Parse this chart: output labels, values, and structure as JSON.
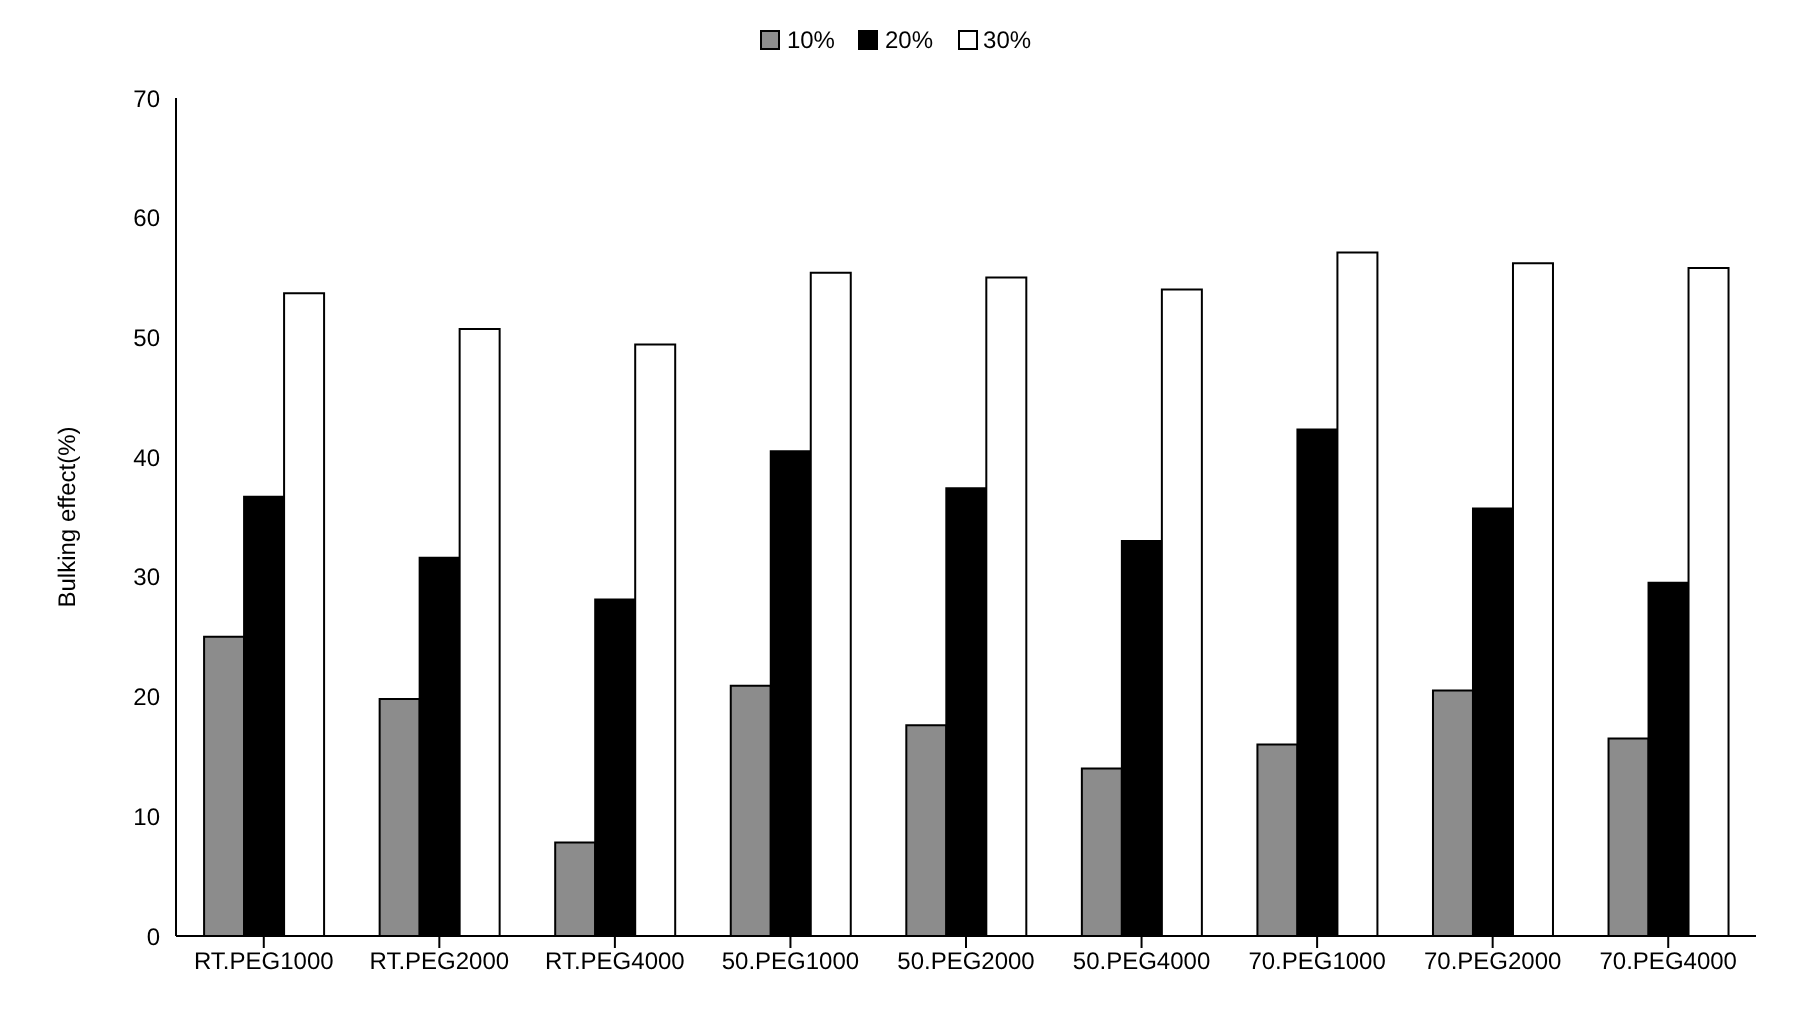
{
  "chart_data": {
    "type": "bar",
    "ylabel": "Bulking effect(%)",
    "categories": [
      "RT.PEG1000",
      "RT.PEG2000",
      "RT.PEG4000",
      "50.PEG1000",
      "50.PEG2000",
      "50.PEG4000",
      "70.PEG1000",
      "70.PEG2000",
      "70.PEG4000"
    ],
    "series": [
      {
        "name": "10%",
        "color": "#8c8c8c",
        "values": [
          25,
          19.8,
          7.8,
          20.9,
          17.6,
          14,
          16,
          20.5,
          16.5
        ]
      },
      {
        "name": "20%",
        "color": "#000000",
        "values": [
          36.7,
          31.6,
          28.1,
          40.5,
          37.4,
          33,
          42.3,
          35.7,
          29.5
        ]
      },
      {
        "name": "30%",
        "color": "#ffffff",
        "values": [
          53.7,
          50.7,
          49.4,
          55.4,
          55,
          54,
          57.1,
          56.2,
          55.8
        ]
      }
    ],
    "ylim": [
      0,
      70
    ],
    "yticks": [
      0,
      10,
      20,
      30,
      40,
      50,
      60,
      70
    ],
    "grid": false,
    "legend": "top"
  }
}
